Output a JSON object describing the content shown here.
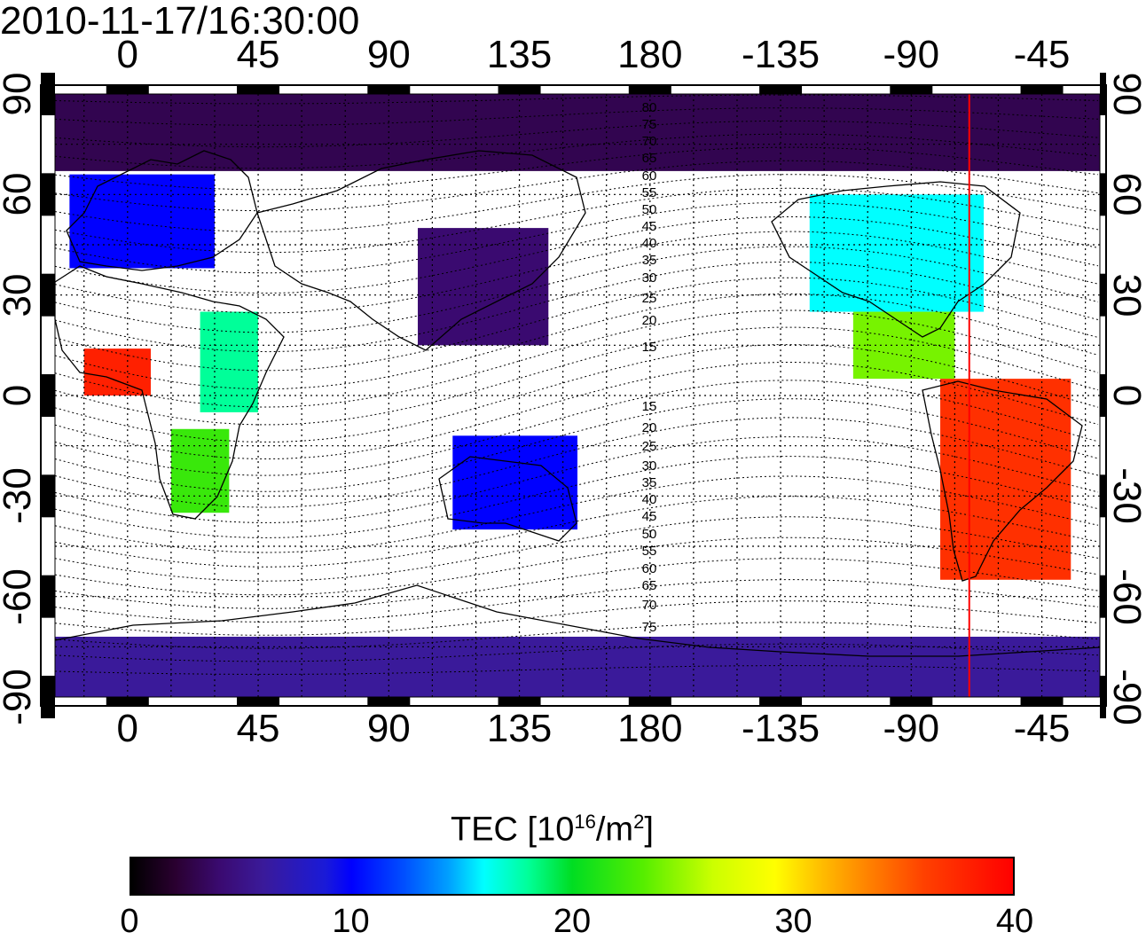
{
  "title": "2010-11-17/16:30:00",
  "map": {
    "type": "global TEC map",
    "lon_ticks": [
      "0",
      "45",
      "90",
      "135",
      "180",
      "-135",
      "-90",
      "-45"
    ],
    "lat_ticks": [
      "90",
      "60",
      "30",
      "0",
      "-30",
      "-60",
      "-90"
    ],
    "magnetic_lat_labels": [
      "80",
      "75",
      "70",
      "65",
      "60",
      "55",
      "50",
      "45",
      "40",
      "35",
      "30",
      "25",
      "20",
      "15",
      "15",
      "20",
      "25",
      "30",
      "35",
      "40",
      "45",
      "50",
      "55",
      "60",
      "65",
      "70",
      "75"
    ],
    "red_meridian_lon": -70,
    "regions": [
      {
        "name": "north-polar-band",
        "lon": [
          -25,
          335
        ],
        "lat": [
          67,
          90
        ],
        "tec": 3
      },
      {
        "name": "europe",
        "lon": [
          -20,
          30
        ],
        "lat": [
          38,
          66
        ],
        "tec": 10
      },
      {
        "name": "west-africa",
        "lon": [
          -15,
          8
        ],
        "lat": [
          0,
          14
        ],
        "tec": 38
      },
      {
        "name": "east-africa",
        "lon": [
          25,
          45
        ],
        "lat": [
          -5,
          25
        ],
        "tec": 18
      },
      {
        "name": "southern-africa",
        "lon": [
          15,
          35
        ],
        "lat": [
          -35,
          -10
        ],
        "tec": 22
      },
      {
        "name": "east-asia",
        "lon": [
          100,
          145
        ],
        "lat": [
          15,
          50
        ],
        "tec": 4
      },
      {
        "name": "australia",
        "lon": [
          112,
          155
        ],
        "lat": [
          -40,
          -12
        ],
        "tec": 10
      },
      {
        "name": "north-america",
        "lon": [
          -125,
          -65
        ],
        "lat": [
          25,
          60
        ],
        "tec": 16
      },
      {
        "name": "central-america",
        "lon": [
          -110,
          -75
        ],
        "lat": [
          5,
          25
        ],
        "tec": 24
      },
      {
        "name": "south-america",
        "lon": [
          -80,
          -35
        ],
        "lat": [
          -55,
          5
        ],
        "tec": 37
      },
      {
        "name": "antarctic-band",
        "lon": [
          -25,
          335
        ],
        "lat": [
          -90,
          -72
        ],
        "tec": 6
      }
    ]
  },
  "colorbar": {
    "label_main": "TEC  [10",
    "label_exp": "16",
    "label_unit": "/m",
    "label_exp2": "2",
    "label_close": "]",
    "min": 0,
    "max": 40,
    "ticks": [
      "0",
      "10",
      "20",
      "30",
      "40"
    ]
  },
  "colors": {
    "map_land_line": "#000000",
    "grid": "#000000",
    "meridian": "#ff0000",
    "background": "#ffffff"
  }
}
